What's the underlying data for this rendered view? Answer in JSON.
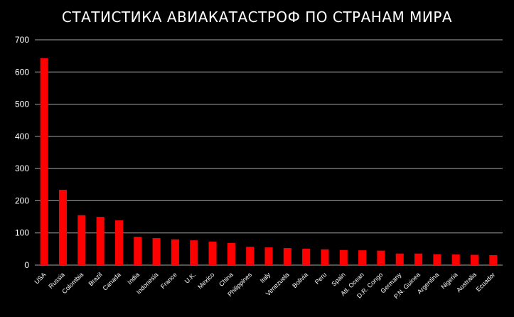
{
  "chart_data": {
    "type": "bar",
    "title": "СТАТИСТИКА АВИАКАТАСТРОФ ПО СТРАНАМ МИРА",
    "categories": [
      "USA",
      "Russia",
      "Colombia",
      "Brazil",
      "Canada",
      "India",
      "Indonesia",
      "France",
      "U.K.",
      "Mexico",
      "China",
      "Philippines",
      "Italy",
      "Venezuela",
      "Bolivia",
      "Peru",
      "Spain",
      "Atl. Ocean",
      "D.R. Congo",
      "Germany",
      "P.N. Guinea",
      "Argentina",
      "Nigeria",
      "Australia",
      "Ecuador"
    ],
    "values": [
      643,
      234,
      155,
      150,
      139,
      88,
      84,
      80,
      77,
      73,
      69,
      57,
      55,
      53,
      51,
      49,
      47,
      46,
      45,
      36,
      36,
      34,
      33,
      32,
      31
    ],
    "ylim": [
      0,
      700
    ],
    "yticks": [
      0,
      100,
      200,
      300,
      400,
      500,
      600,
      700
    ],
    "grid": true,
    "bar_color": "#ff0000",
    "background": "#000000",
    "grid_color": "#a6a6a6"
  }
}
